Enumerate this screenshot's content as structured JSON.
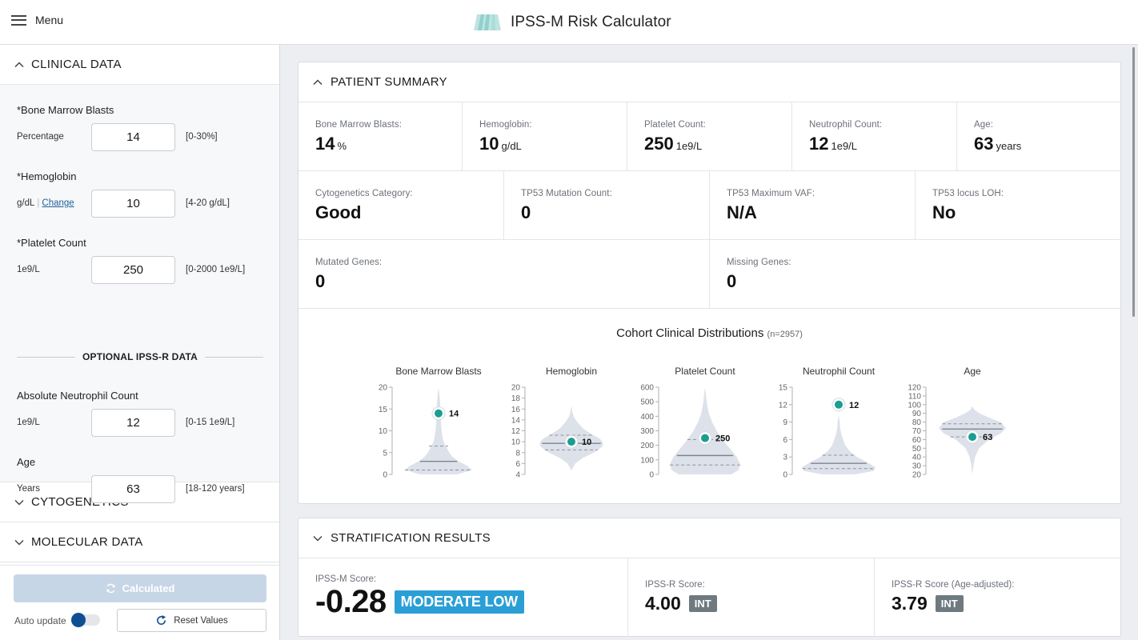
{
  "header": {
    "menu_label": "Menu",
    "app_title": "IPSS-M Risk Calculator",
    "logo_icon": "striped-trapezoid-logo"
  },
  "sidebar": {
    "clinical_section": {
      "title": "CLINICAL DATA",
      "expanded": true,
      "fields": [
        {
          "label": "*Bone Marrow Blasts",
          "unit": "Percentage",
          "value": "14",
          "range": "[0-30%]"
        },
        {
          "label": "*Hemoglobin",
          "unit": "g/dL",
          "unit_link": "Change",
          "value": "10",
          "range": "[4-20 g/dL]"
        },
        {
          "label": "*Platelet Count",
          "unit": "1e9/L",
          "value": "250",
          "range": "[0-2000 1e9/L]"
        }
      ],
      "optional_divider": "OPTIONAL IPSS-R DATA",
      "optional_fields": [
        {
          "label": "Absolute Neutrophil Count",
          "unit": "1e9/L",
          "value": "12",
          "range": "[0-15 1e9/L]"
        },
        {
          "label": "Age",
          "unit": "Years",
          "value": "63",
          "range": "[18-120 years]"
        }
      ]
    },
    "cytogenetics_section": {
      "title": "CYTOGENETICS",
      "expanded": false
    },
    "molecular_section": {
      "title": "MOLECULAR DATA",
      "expanded": false
    },
    "footer": {
      "calculate_label": "Calculated",
      "auto_update_label": "Auto update",
      "auto_update_on": true,
      "reset_label": "Reset Values"
    }
  },
  "patient_summary": {
    "title": "PATIENT SUMMARY",
    "row1": [
      {
        "label": "Bone Marrow Blasts:",
        "value": "14",
        "unit": "%"
      },
      {
        "label": "Hemoglobin:",
        "value": "10",
        "unit": "g/dL"
      },
      {
        "label": "Platelet Count:",
        "value": "250",
        "unit": "1e9/L"
      },
      {
        "label": "Neutrophil Count:",
        "value": "12",
        "unit": "1e9/L"
      },
      {
        "label": "Age:",
        "value": "63",
        "unit": "years"
      }
    ],
    "row2": [
      {
        "label": "Cytogenetics Category:",
        "value": "Good"
      },
      {
        "label": "TP53 Mutation Count:",
        "value": "0"
      },
      {
        "label": "TP53 Maximum VAF:",
        "value": "N/A"
      },
      {
        "label": "TP53 locus LOH:",
        "value": "No"
      }
    ],
    "row3": [
      {
        "label": "Mutated Genes:",
        "value": "0"
      },
      {
        "label": "Missing Genes:",
        "value": "0"
      }
    ]
  },
  "chart_data": {
    "type": "violin",
    "title": "Cohort Clinical Distributions",
    "subtitle": "(n=2957)",
    "colors": {
      "violin": "#dde2ea",
      "marker": "#1a9e91",
      "median": "#7d858e",
      "quartile": "#8a919a"
    },
    "panels": [
      {
        "name": "Bone Marrow Blasts",
        "ticks": [
          "0",
          "5",
          "10",
          "15",
          "20"
        ],
        "ylim": [
          0,
          20
        ],
        "patient_value": 14,
        "patient_label": "14",
        "median": 3,
        "q1": 1,
        "q3": 6.5,
        "density": [
          [
            0,
            0.55
          ],
          [
            1,
            1.0
          ],
          [
            2,
            0.85
          ],
          [
            3,
            0.6
          ],
          [
            4,
            0.42
          ],
          [
            5,
            0.32
          ],
          [
            6,
            0.25
          ],
          [
            7,
            0.18
          ],
          [
            8,
            0.13
          ],
          [
            10,
            0.09
          ],
          [
            12,
            0.07
          ],
          [
            14,
            0.06
          ],
          [
            16,
            0.05
          ],
          [
            18,
            0.03
          ],
          [
            20,
            0.0
          ]
        ]
      },
      {
        "name": "Hemoglobin",
        "ticks": [
          "4",
          "6",
          "8",
          "10",
          "12",
          "14",
          "16",
          "18",
          " 20"
        ],
        "ylim": [
          4,
          20
        ],
        "patient_value": 10,
        "patient_label": "10",
        "median": 9.7,
        "q1": 8.5,
        "q3": 11.2,
        "density": [
          [
            4.7,
            0.0
          ],
          [
            6,
            0.12
          ],
          [
            7,
            0.35
          ],
          [
            8,
            0.7
          ],
          [
            9,
            0.95
          ],
          [
            9.7,
            1.0
          ],
          [
            10.5,
            0.9
          ],
          [
            11.5,
            0.6
          ],
          [
            12.5,
            0.35
          ],
          [
            13.5,
            0.2
          ],
          [
            14.5,
            0.08
          ],
          [
            15.5,
            0.03
          ],
          [
            16.6,
            0.0
          ]
        ]
      },
      {
        "name": "Platelet Count",
        "ticks": [
          "0",
          "100",
          "200",
          "300",
          "400",
          "500",
          "600"
        ],
        "ylim": [
          0,
          600
        ],
        "patient_value": 250,
        "patient_label": "250",
        "median": 130,
        "q1": 65,
        "q3": 240,
        "density": [
          [
            0,
            0.75
          ],
          [
            30,
            0.95
          ],
          [
            70,
            1.0
          ],
          [
            120,
            0.9
          ],
          [
            180,
            0.7
          ],
          [
            240,
            0.5
          ],
          [
            300,
            0.33
          ],
          [
            360,
            0.2
          ],
          [
            420,
            0.11
          ],
          [
            480,
            0.06
          ],
          [
            540,
            0.03
          ],
          [
            600,
            0.0
          ]
        ]
      },
      {
        "name": "Neutrophil Count",
        "ticks": [
          "0",
          "3",
          "6",
          "9",
          "12",
          "15"
        ],
        "ylim": [
          0,
          15
        ],
        "patient_value": 12,
        "patient_label": "12",
        "median": 1.9,
        "q1": 1.0,
        "q3": 3.3,
        "density": [
          [
            0,
            0.45
          ],
          [
            0.6,
            0.95
          ],
          [
            1.2,
            1.0
          ],
          [
            2,
            0.8
          ],
          [
            3,
            0.5
          ],
          [
            4,
            0.3
          ],
          [
            5,
            0.18
          ],
          [
            6,
            0.12
          ],
          [
            7,
            0.07
          ],
          [
            8,
            0.04
          ],
          [
            9,
            0.03
          ],
          [
            10.2,
            0.0
          ]
        ]
      },
      {
        "name": "Age",
        "ticks": [
          "20",
          "30",
          "40",
          "50",
          "60",
          "70",
          "80",
          "90",
          "100",
          "110",
          "120"
        ],
        "ylim": [
          20,
          120
        ],
        "patient_value": 63,
        "patient_label": "63",
        "median": 72,
        "q1": 63,
        "q3": 78,
        "density": [
          [
            20,
            0.0
          ],
          [
            30,
            0.03
          ],
          [
            40,
            0.08
          ],
          [
            50,
            0.2
          ],
          [
            60,
            0.5
          ],
          [
            67,
            0.85
          ],
          [
            73,
            1.0
          ],
          [
            80,
            0.85
          ],
          [
            85,
            0.5
          ],
          [
            90,
            0.22
          ],
          [
            94,
            0.06
          ],
          [
            98,
            0.0
          ]
        ]
      }
    ]
  },
  "stratification": {
    "title": "STRATIFICATION RESULTS",
    "ipss_m": {
      "label": "IPSS-M Score:",
      "value": "-0.28",
      "category": "MODERATE LOW",
      "color": "#2a9fd6"
    },
    "ipss_r": {
      "label": "IPSS-R Score:",
      "value": "4.00",
      "category": "INT",
      "color": "#6e7a80"
    },
    "ipss_r_age": {
      "label": "IPSS-R Score (Age-adjusted):",
      "value": "3.79",
      "category": "INT",
      "color": "#6e7a80"
    }
  }
}
